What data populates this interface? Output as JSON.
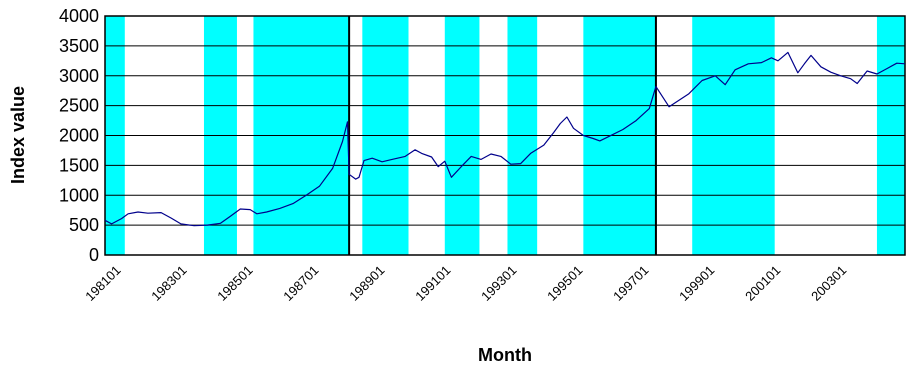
{
  "chart_data": {
    "type": "line",
    "title": "",
    "xlabel": "Month",
    "ylabel": "Index value",
    "ylim": [
      0,
      4000
    ],
    "yticks": [
      0,
      500,
      1000,
      1500,
      2000,
      2500,
      3000,
      3500,
      4000
    ],
    "xlim": [
      1980.5,
      2004.75
    ],
    "xticks": [
      {
        "label": "198101",
        "t": 1981.0
      },
      {
        "label": "198301",
        "t": 1983.0
      },
      {
        "label": "198501",
        "t": 1985.0
      },
      {
        "label": "198701",
        "t": 1987.0
      },
      {
        "label": "198901",
        "t": 1989.0
      },
      {
        "label": "199101",
        "t": 1991.0
      },
      {
        "label": "199301",
        "t": 1993.0
      },
      {
        "label": "199501",
        "t": 1995.0
      },
      {
        "label": "199701",
        "t": 1997.0
      },
      {
        "label": "199901",
        "t": 1999.0
      },
      {
        "label": "200101",
        "t": 2001.0
      },
      {
        "label": "200301",
        "t": 2003.0
      }
    ],
    "grid": "horizontal",
    "line_color": "#00008b",
    "band_color": "#00ffff",
    "shaded_periods": [
      [
        1980.5,
        1981.1
      ],
      [
        1983.5,
        1984.5
      ],
      [
        1985.0,
        1987.9
      ],
      [
        1988.3,
        1989.7
      ],
      [
        1990.8,
        1991.85
      ],
      [
        1992.7,
        1993.6
      ],
      [
        1995.0,
        1997.2
      ],
      [
        1998.3,
        2000.8
      ],
      [
        2003.9,
        2004.75
      ]
    ],
    "vertical_markers": [
      1987.9,
      1997.2
    ],
    "series": [
      {
        "values": [
          [
            1980.5,
            580
          ],
          [
            1980.7,
            520
          ],
          [
            1981.0,
            610
          ],
          [
            1981.2,
            690
          ],
          [
            1981.5,
            720
          ],
          [
            1981.8,
            700
          ],
          [
            1982.2,
            710
          ],
          [
            1982.5,
            620
          ],
          [
            1982.8,
            520
          ],
          [
            1983.2,
            490
          ],
          [
            1983.6,
            500
          ],
          [
            1984.0,
            530
          ],
          [
            1984.3,
            650
          ],
          [
            1984.6,
            770
          ],
          [
            1984.9,
            760
          ],
          [
            1985.1,
            690
          ],
          [
            1985.4,
            720
          ],
          [
            1985.8,
            780
          ],
          [
            1986.2,
            860
          ],
          [
            1986.6,
            1000
          ],
          [
            1987.0,
            1150
          ],
          [
            1987.4,
            1450
          ],
          [
            1987.7,
            1900
          ],
          [
            1987.85,
            2230
          ],
          [
            1987.9,
            1350
          ],
          [
            1988.1,
            1270
          ],
          [
            1988.2,
            1300
          ],
          [
            1988.35,
            1580
          ],
          [
            1988.6,
            1620
          ],
          [
            1988.9,
            1560
          ],
          [
            1989.2,
            1600
          ],
          [
            1989.6,
            1650
          ],
          [
            1989.9,
            1760
          ],
          [
            1990.1,
            1700
          ],
          [
            1990.4,
            1640
          ],
          [
            1990.6,
            1480
          ],
          [
            1990.8,
            1570
          ],
          [
            1991.0,
            1300
          ],
          [
            1991.3,
            1480
          ],
          [
            1991.6,
            1650
          ],
          [
            1991.9,
            1600
          ],
          [
            1992.2,
            1690
          ],
          [
            1992.5,
            1650
          ],
          [
            1992.8,
            1520
          ],
          [
            1993.1,
            1530
          ],
          [
            1993.4,
            1700
          ],
          [
            1993.8,
            1840
          ],
          [
            1994.1,
            2050
          ],
          [
            1994.3,
            2200
          ],
          [
            1994.5,
            2310
          ],
          [
            1994.7,
            2120
          ],
          [
            1995.0,
            2000
          ],
          [
            1995.3,
            1950
          ],
          [
            1995.5,
            1910
          ],
          [
            1995.8,
            1990
          ],
          [
            1996.2,
            2100
          ],
          [
            1996.6,
            2250
          ],
          [
            1997.0,
            2450
          ],
          [
            1997.2,
            2820
          ],
          [
            1997.4,
            2650
          ],
          [
            1997.6,
            2480
          ],
          [
            1997.9,
            2590
          ],
          [
            1998.2,
            2700
          ],
          [
            1998.6,
            2920
          ],
          [
            1999.0,
            3000
          ],
          [
            1999.3,
            2850
          ],
          [
            1999.6,
            3100
          ],
          [
            2000.0,
            3200
          ],
          [
            2000.4,
            3220
          ],
          [
            2000.7,
            3300
          ],
          [
            2000.9,
            3250
          ],
          [
            2001.2,
            3390
          ],
          [
            2001.5,
            3050
          ],
          [
            2001.7,
            3200
          ],
          [
            2001.9,
            3340
          ],
          [
            2002.2,
            3150
          ],
          [
            2002.5,
            3060
          ],
          [
            2002.8,
            3000
          ],
          [
            2003.1,
            2950
          ],
          [
            2003.3,
            2870
          ],
          [
            2003.6,
            3080
          ],
          [
            2003.9,
            3030
          ],
          [
            2004.2,
            3120
          ],
          [
            2004.5,
            3210
          ],
          [
            2004.75,
            3200
          ]
        ]
      }
    ]
  }
}
